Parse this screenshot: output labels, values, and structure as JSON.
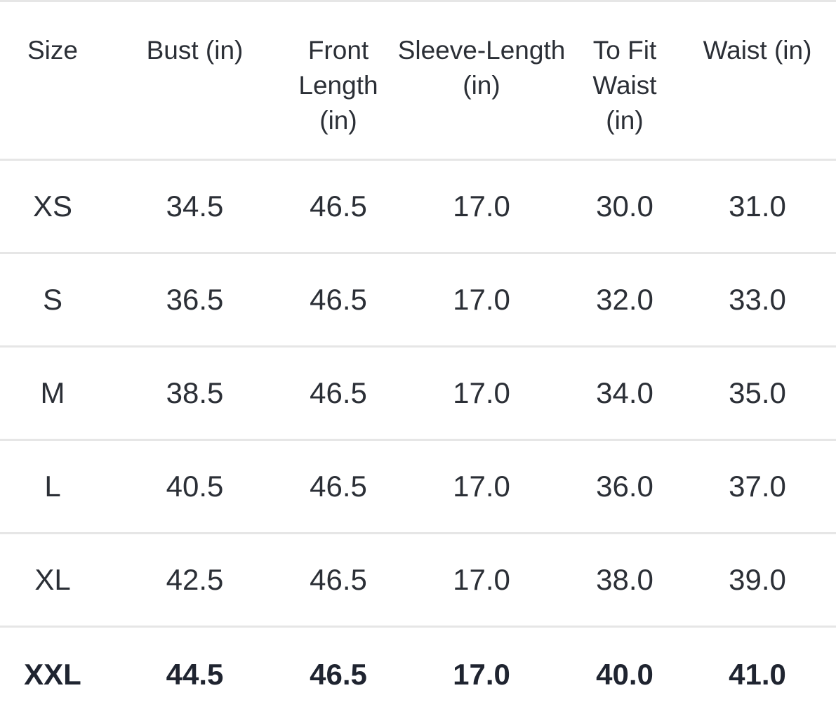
{
  "table": {
    "headers": [
      "Size",
      "Bust (in)",
      "Front Length (in)",
      "Sleeve-Length (in)",
      "To Fit Waist (in)",
      "Waist (in)"
    ],
    "rows": [
      [
        "XS",
        "34.5",
        "46.5",
        "17.0",
        "30.0",
        "31.0"
      ],
      [
        "S",
        "36.5",
        "46.5",
        "17.0",
        "32.0",
        "33.0"
      ],
      [
        "M",
        "38.5",
        "46.5",
        "17.0",
        "34.0",
        "35.0"
      ],
      [
        "L",
        "40.5",
        "46.5",
        "17.0",
        "36.0",
        "37.0"
      ],
      [
        "XL",
        "42.5",
        "46.5",
        "17.0",
        "38.0",
        "39.0"
      ],
      [
        "XXL",
        "44.5",
        "46.5",
        "17.0",
        "40.0",
        "41.0"
      ]
    ]
  }
}
